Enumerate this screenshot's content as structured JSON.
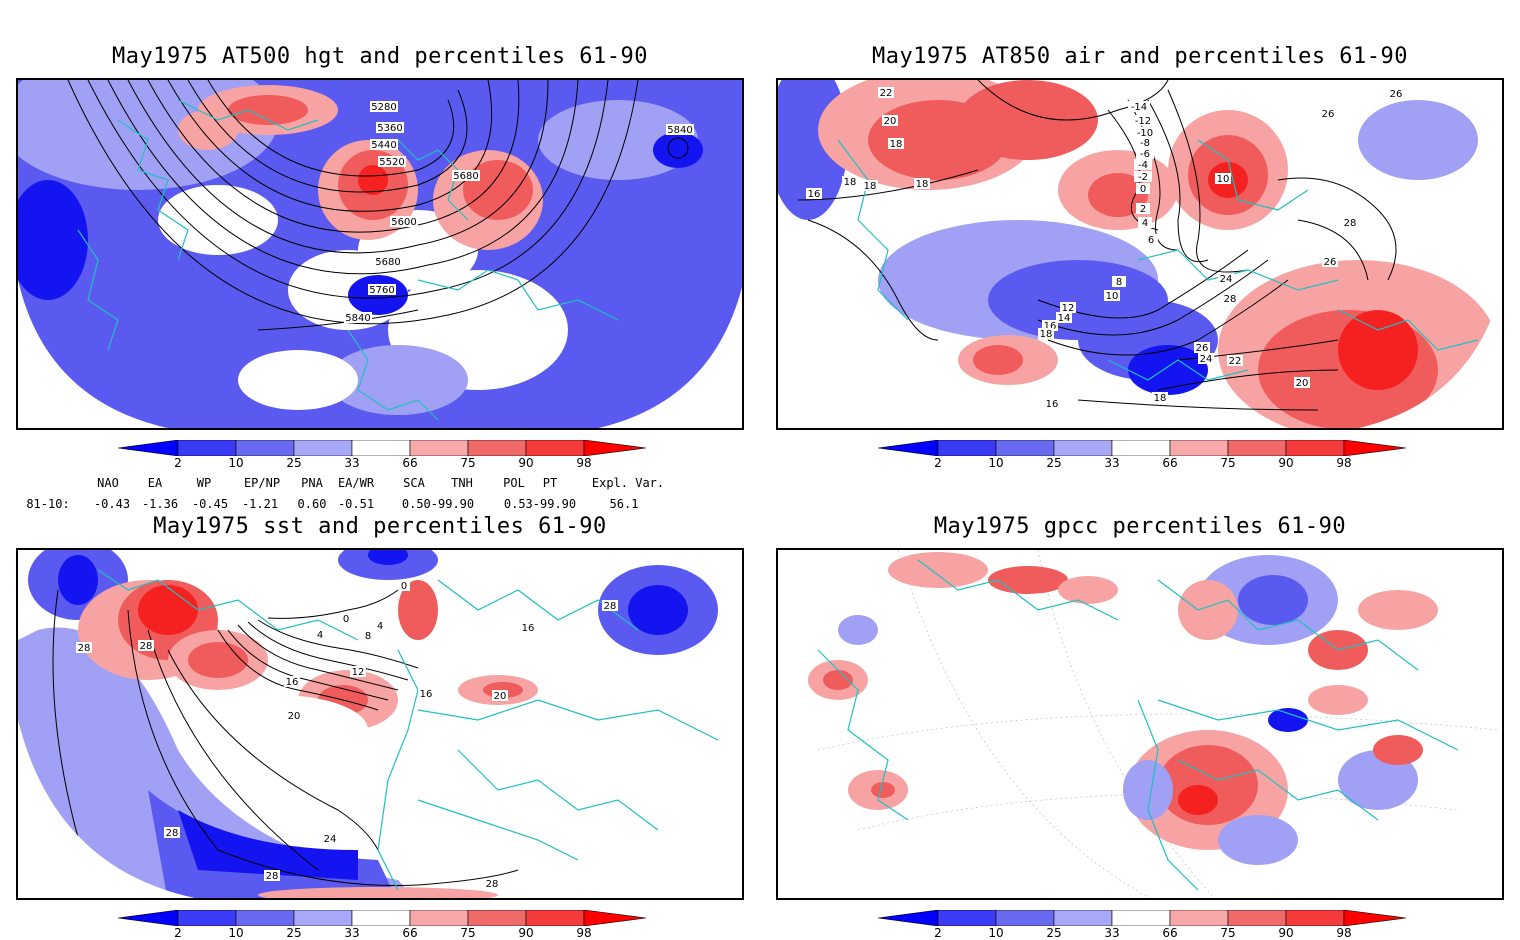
{
  "panels": {
    "top_left": {
      "title": "May1975 AT500 hgt and percentiles 61-90",
      "contour_labels": [
        "5280",
        "5360",
        "5440",
        "5520",
        "5600",
        "5680",
        "5680",
        "5760",
        "5840",
        "5840"
      ]
    },
    "top_right": {
      "title": "May1975 AT850 air and percentiles 61-90",
      "contour_labels": [
        "22",
        "20",
        "18",
        "18",
        "16",
        "-14",
        "-12",
        "-10",
        "-8",
        "-6",
        "-4",
        "-2",
        "0",
        "2",
        "4",
        "6",
        "8",
        "10",
        "10",
        "12",
        "14",
        "16",
        "18",
        "18",
        "20",
        "22",
        "24",
        "24",
        "26",
        "26",
        "26",
        "26",
        "28",
        "28",
        "16",
        "18",
        "18"
      ]
    },
    "bottom_left": {
      "title": "May1975 sst and percentiles 61-90",
      "contour_labels": [
        "28",
        "28",
        "28",
        "0",
        "0",
        "4",
        "4",
        "8",
        "12",
        "16",
        "16",
        "16",
        "20",
        "20",
        "24",
        "28",
        "28",
        "28"
      ]
    },
    "bottom_right": {
      "title": "May1975 gpcc percentiles 61-90",
      "contour_labels": []
    }
  },
  "colorbar": {
    "labels": [
      "2",
      "10",
      "25",
      "33",
      "66",
      "75",
      "90",
      "98"
    ],
    "colors": [
      "#0000ff",
      "#3b3bf5",
      "#6a6af0",
      "#a8a8f8",
      "#ffffff",
      "#f8a8a8",
      "#f06a6a",
      "#f53b3b",
      "#ff0000"
    ]
  },
  "indices": {
    "row_label": "81-10:",
    "headers": [
      "NAO",
      "EA",
      "WP",
      "EP/NP",
      "PNA",
      "EA/WR",
      "SCA",
      "TNH",
      "POL",
      "PT",
      "Expl. Var."
    ],
    "values": [
      "-0.43",
      "-1.36",
      "-0.45",
      "-1.21",
      "0.60",
      "-0.51",
      "0.50-99.90",
      "0.53-99.90",
      "56.1"
    ]
  },
  "colors": {
    "blue_dark": "#1414f0",
    "blue_mid": "#5a5af0",
    "blue_light": "#a0a0f5",
    "red_light": "#f7a3a3",
    "red_mid": "#f05c5c",
    "red_dark": "#f52020",
    "coast": "#20c0c0",
    "contour": "#000000"
  }
}
